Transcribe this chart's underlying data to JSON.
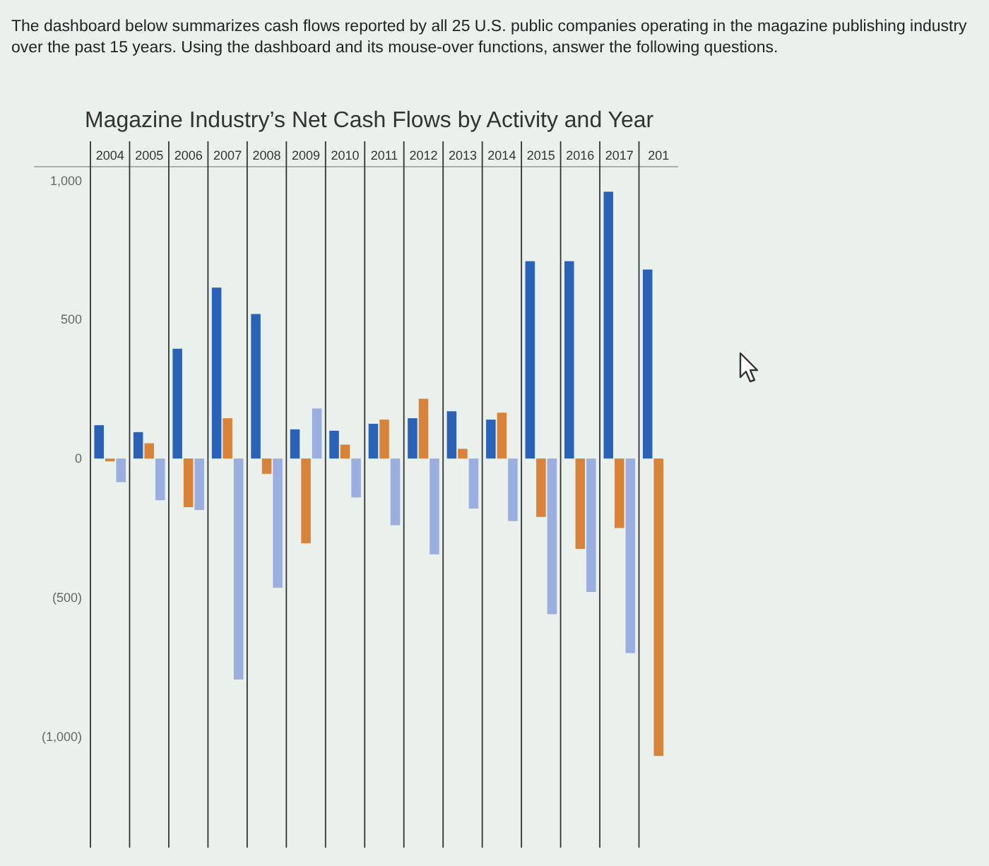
{
  "chart_data": {
    "type": "bar",
    "title": "Magazine Industry’s Net Cash Flows by Activity and Year",
    "annotations": [
      "The dashboard below summarizes cash flows reported by all 25 U.S. public companies operating in the magazine publishing industry over the past 15 years. Using the dashboard and its mouse-over functions, answer the following questions."
    ],
    "categories": [
      "2004",
      "2005",
      "2006",
      "2007",
      "2008",
      "2009",
      "2010",
      "2011",
      "2012",
      "2013",
      "2014",
      "2015",
      "2016",
      "2017",
      "201"
    ],
    "series": [
      {
        "color": "#2a62b8",
        "values": [
          120,
          95,
          395,
          615,
          520,
          105,
          100,
          125,
          145,
          170,
          140,
          710,
          710,
          960,
          680
        ]
      },
      {
        "color": "#d9823a",
        "values": [
          -10,
          55,
          -175,
          145,
          -55,
          -305,
          50,
          140,
          215,
          35,
          165,
          -210,
          -325,
          -250,
          -1070
        ]
      },
      {
        "color": "#9aaee0",
        "values": [
          -85,
          -150,
          -185,
          -795,
          -465,
          180,
          -140,
          -240,
          -345,
          -180,
          -225,
          -560,
          -480,
          -700,
          null
        ]
      }
    ],
    "ylim": [
      -1400,
      1050
    ],
    "yticks": [
      {
        "value": 1000,
        "label": "1,000"
      },
      {
        "value": 500,
        "label": "500"
      },
      0,
      {
        "value": -500,
        "label": "(500)"
      },
      {
        "value": -1000,
        "label": "(1,000)"
      }
    ],
    "grid": false
  }
}
